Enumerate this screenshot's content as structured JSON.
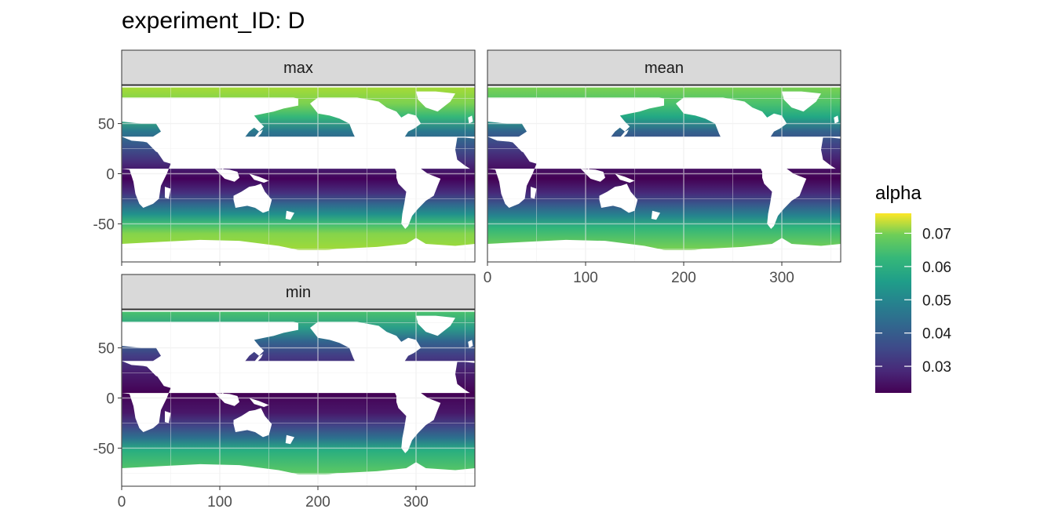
{
  "chart_data": {
    "type": "heatmap",
    "title": "experiment_ID: D",
    "xlabel": "",
    "ylabel": "",
    "xlim": [
      0,
      360
    ],
    "ylim": [
      -90,
      90
    ],
    "x_ticks": [
      0,
      100,
      200,
      300
    ],
    "y_ticks": [
      50,
      0,
      -50
    ],
    "legend": {
      "title": "alpha",
      "placement": "right",
      "range": [
        0.022,
        0.076
      ],
      "ticks": [
        0.07,
        0.06,
        0.05,
        0.04,
        0.03
      ],
      "colormap": "viridis"
    },
    "panels": [
      {
        "label": "max",
        "approx": {
          "equatorial_min": 0.024,
          "high_lat_max": 0.073
        }
      },
      {
        "label": "mean",
        "approx": {
          "equatorial_min": 0.023,
          "high_lat_max": 0.066
        }
      },
      {
        "label": "min",
        "approx": {
          "equatorial_min": 0.022,
          "high_lat_max": 0.062
        }
      }
    ],
    "grid": true
  }
}
